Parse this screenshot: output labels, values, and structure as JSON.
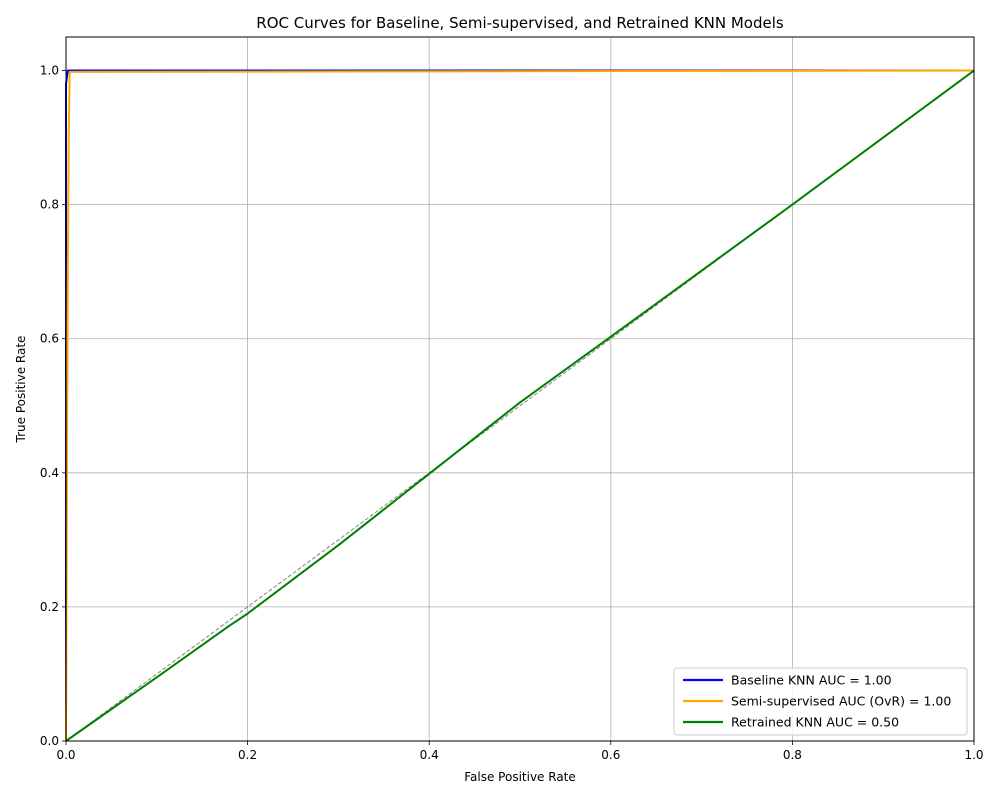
{
  "chart_data": {
    "type": "line",
    "title": "ROC Curves for Baseline, Semi-supervised, and Retrained KNN Models",
    "xlabel": "False Positive Rate",
    "ylabel": "True Positive Rate",
    "xlim": [
      0.0,
      1.0
    ],
    "ylim": [
      0.0,
      1.05
    ],
    "x_ticks": [
      "0.0",
      "0.2",
      "0.4",
      "0.6",
      "0.8",
      "1.0"
    ],
    "y_ticks": [
      "0.0",
      "0.2",
      "0.4",
      "0.6",
      "0.8",
      "1.0"
    ],
    "grid": true,
    "legend_position": "lower-right",
    "series": [
      {
        "name": "Baseline KNN AUC = 1.00",
        "color": "#0000ff",
        "x": [
          0.0,
          0.0,
          0.002,
          0.005,
          1.0
        ],
        "y": [
          0.0,
          0.98,
          1.0,
          1.0,
          1.0
        ]
      },
      {
        "name": "Semi-supervised AUC (OvR) = 1.00",
        "color": "#ffa500",
        "x": [
          0.0,
          0.001,
          0.002,
          0.003,
          0.004,
          1.0
        ],
        "y": [
          0.0,
          0.4,
          0.7,
          0.9,
          0.998,
          1.0
        ]
      },
      {
        "name": "Retrained KNN AUC = 0.50",
        "color": "#008000",
        "x": [
          0.0,
          0.1,
          0.18,
          0.2,
          0.3,
          0.5,
          0.6,
          0.8,
          1.0
        ],
        "y": [
          0.0,
          0.095,
          0.172,
          0.19,
          0.292,
          0.505,
          0.603,
          0.8,
          1.0
        ]
      }
    ],
    "diagonal": {
      "color": "#808080",
      "x": [
        0.0,
        1.0
      ],
      "y": [
        0.0,
        1.0
      ]
    }
  }
}
